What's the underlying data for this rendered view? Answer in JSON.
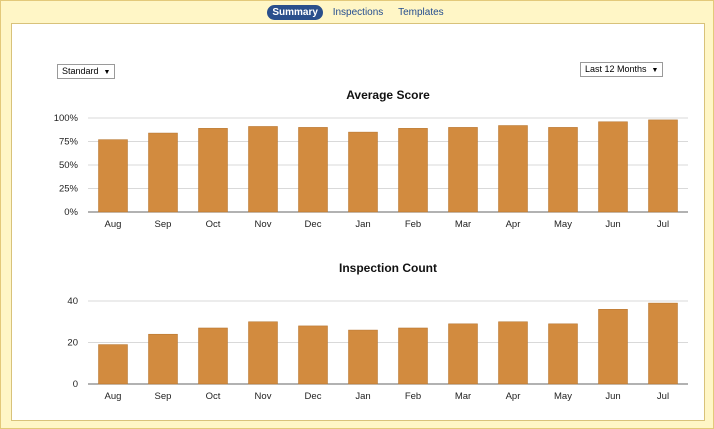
{
  "tabs": [
    {
      "label": "Summary",
      "active": true
    },
    {
      "label": "Inspections",
      "active": false
    },
    {
      "label": "Templates",
      "active": false
    }
  ],
  "filters": {
    "type": "Standard",
    "range": "Last 12 Months",
    "arrow_icon": "caret-down-icon"
  },
  "colors": {
    "bar": "#d28b3f",
    "bar_border": "#b27029",
    "active_tab": "#2a4f8c",
    "frame": "#fff6c6"
  },
  "chart_data": [
    {
      "type": "bar",
      "title": "Average Score",
      "categories": [
        "Aug",
        "Sep",
        "Oct",
        "Nov",
        "Dec",
        "Jan",
        "Feb",
        "Mar",
        "Apr",
        "May",
        "Jun",
        "Jul"
      ],
      "values": [
        77,
        84,
        89,
        91,
        90,
        85,
        89,
        90,
        92,
        90,
        96,
        98
      ],
      "ylim": [
        0,
        100
      ],
      "yticks": [
        "0%",
        "25%",
        "50%",
        "75%",
        "100%"
      ],
      "ytick_values": [
        0,
        25,
        50,
        75,
        100
      ],
      "grid": true
    },
    {
      "type": "bar",
      "title": "Inspection Count",
      "categories": [
        "Aug",
        "Sep",
        "Oct",
        "Nov",
        "Dec",
        "Jan",
        "Feb",
        "Mar",
        "Apr",
        "May",
        "Jun",
        "Jul"
      ],
      "values": [
        19,
        24,
        27,
        30,
        28,
        26,
        27,
        29,
        30,
        29,
        36,
        39
      ],
      "ylim": [
        0,
        40
      ],
      "yticks": [
        "0",
        "20",
        "40"
      ],
      "ytick_values": [
        0,
        20,
        40
      ],
      "grid": true
    }
  ]
}
